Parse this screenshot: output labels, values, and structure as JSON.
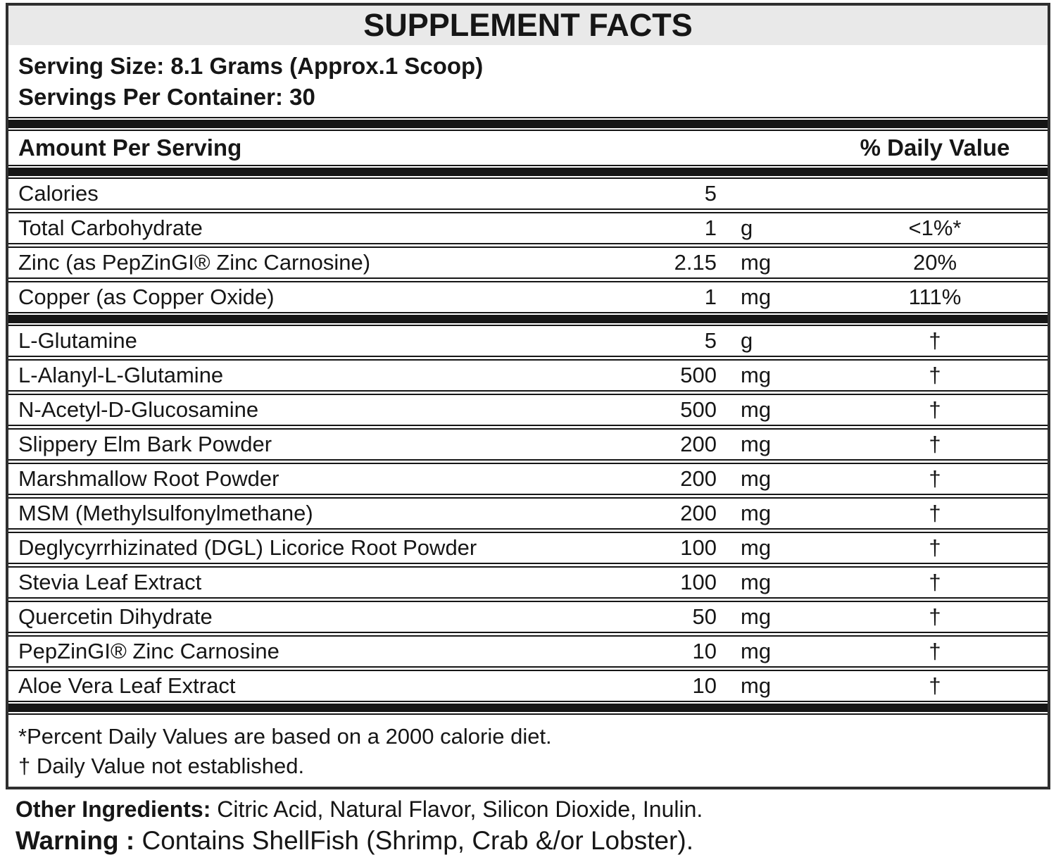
{
  "label": {
    "title": "SUPPLEMENT FACTS",
    "serving_size": "Serving Size: 8.1 Grams (Approx.1 Scoop)",
    "servings_per_container": "Servings Per Container: 30",
    "columns": {
      "amount_header": "Amount Per Serving",
      "daily_value_header": "% Daily Value"
    },
    "rows": [
      {
        "name": "Calories",
        "amount": "5",
        "unit": "",
        "dv": ""
      },
      {
        "name": "Total Carbohydrate",
        "amount": "1",
        "unit": "g",
        "dv": "<1%*"
      },
      {
        "name": "Zinc (as PepZinGI® Zinc Carnosine)",
        "amount": "2.15",
        "unit": "mg",
        "dv": "20%"
      },
      {
        "name": "Copper (as Copper Oxide)",
        "amount": "1",
        "unit": "mg",
        "dv": "111%"
      },
      {
        "name": "L-Glutamine",
        "amount": "5",
        "unit": "g",
        "dv": "†"
      },
      {
        "name": "L-Alanyl-L-Glutamine",
        "amount": "500",
        "unit": "mg",
        "dv": "†"
      },
      {
        "name": "N-Acetyl-D-Glucosamine",
        "amount": "500",
        "unit": "mg",
        "dv": "†"
      },
      {
        "name": "Slippery Elm Bark Powder",
        "amount": "200",
        "unit": "mg",
        "dv": "†"
      },
      {
        "name": "Marshmallow Root Powder",
        "amount": "200",
        "unit": "mg",
        "dv": "†"
      },
      {
        "name": "MSM (Methylsulfonylmethane)",
        "amount": "200",
        "unit": "mg",
        "dv": "†"
      },
      {
        "name": "Deglycyrrhizinated (DGL) Licorice Root Powder",
        "amount": "100",
        "unit": "mg",
        "dv": "†"
      },
      {
        "name": "Stevia Leaf Extract",
        "amount": "100",
        "unit": "mg",
        "dv": "†"
      },
      {
        "name": "Quercetin Dihydrate",
        "amount": "50",
        "unit": "mg",
        "dv": "†"
      },
      {
        "name": "PepZinGI® Zinc Carnosine",
        "amount": "10",
        "unit": "mg",
        "dv": "†"
      },
      {
        "name": "Aloe Vera Leaf Extract",
        "amount": "10",
        "unit": "mg",
        "dv": "†"
      }
    ],
    "footnotes": {
      "percent": "*Percent Daily Values are based on a 2000 calorie diet.",
      "dagger": "† Daily Value not established."
    },
    "other_ingredients": {
      "label": "Other Ingredients:",
      "text": "Citric Acid, Natural Flavor, Silicon Dioxide, Inulin."
    },
    "warning": {
      "label": "Warning :",
      "text": "Contains ShellFish (Shrimp, Crab &/or Lobster)."
    },
    "colors": {
      "text": "#161616",
      "title_band_background": "#e9e9e9",
      "border": "#2f2f2f",
      "background": "#ffffff"
    }
  }
}
